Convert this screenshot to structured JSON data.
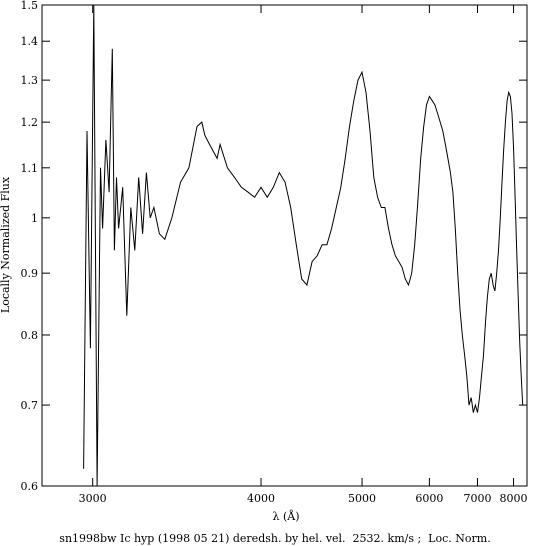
{
  "chart_data": {
    "type": "line",
    "xlabel": "λ (Å)",
    "ylabel": "Locally Normalized Flux",
    "caption": "sn1998bw Ic hyp (1998 05 21) deredsh. by hel. vel.  2532. km/s ;  Loc. Norm.",
    "x_scale": "reciprocal",
    "y_scale": "log",
    "xlim": [
      2790,
      8450
    ],
    "ylim": [
      0.6,
      1.5
    ],
    "x_ticks": [
      3000,
      4000,
      5000,
      6000,
      7000,
      8000
    ],
    "y_ticks": [
      0.6,
      0.7,
      0.8,
      0.9,
      1,
      1.1,
      1.2,
      1.3,
      1.4,
      1.5
    ],
    "grid": false,
    "series": [
      {
        "name": "",
        "x": [
          2960,
          2975,
          2990,
          3005,
          3020,
          3035,
          3045,
          3060,
          3075,
          3090,
          3100,
          3110,
          3120,
          3140,
          3160,
          3180,
          3200,
          3220,
          3240,
          3260,
          3280,
          3300,
          3330,
          3360,
          3400,
          3450,
          3500,
          3550,
          3580,
          3600,
          3630,
          3680,
          3700,
          3750,
          3800,
          3850,
          3900,
          3950,
          4000,
          4050,
          4100,
          4150,
          4200,
          4250,
          4300,
          4350,
          4400,
          4450,
          4500,
          4550,
          4600,
          4650,
          4700,
          4750,
          4800,
          4850,
          4900,
          4950,
          5000,
          5050,
          5100,
          5150,
          5200,
          5250,
          5300,
          5350,
          5400,
          5450,
          5500,
          5550,
          5600,
          5650,
          5700,
          5750,
          5800,
          5850,
          5900,
          5950,
          6000,
          6050,
          6100,
          6150,
          6200,
          6250,
          6300,
          6350,
          6400,
          6450,
          6500,
          6550,
          6600,
          6650,
          6700,
          6750,
          6800,
          6850,
          6900,
          6950,
          7000,
          7050,
          7100,
          7150,
          7200,
          7250,
          7300,
          7350,
          7400,
          7450,
          7500,
          7550,
          7600,
          7650,
          7700,
          7750,
          7800,
          7850,
          7900,
          7950,
          8000,
          8050,
          8100,
          8150,
          8200,
          8250,
          8300
        ],
        "y": [
          0.62,
          1.18,
          0.78,
          1.5,
          0.6,
          1.1,
          0.98,
          1.16,
          1.05,
          1.38,
          0.94,
          1.08,
          0.98,
          1.06,
          0.83,
          1.02,
          0.94,
          1.08,
          0.97,
          1.09,
          1.0,
          1.02,
          0.97,
          0.96,
          1.0,
          1.07,
          1.1,
          1.19,
          1.2,
          1.17,
          1.15,
          1.12,
          1.15,
          1.1,
          1.08,
          1.06,
          1.05,
          1.04,
          1.06,
          1.04,
          1.06,
          1.09,
          1.07,
          1.02,
          0.95,
          0.89,
          0.88,
          0.92,
          0.93,
          0.95,
          0.95,
          0.98,
          1.02,
          1.06,
          1.12,
          1.19,
          1.25,
          1.3,
          1.32,
          1.27,
          1.18,
          1.08,
          1.04,
          1.02,
          1.02,
          0.98,
          0.95,
          0.93,
          0.92,
          0.91,
          0.89,
          0.88,
          0.9,
          0.95,
          1.03,
          1.12,
          1.19,
          1.24,
          1.26,
          1.25,
          1.24,
          1.22,
          1.2,
          1.18,
          1.15,
          1.12,
          1.09,
          1.05,
          0.98,
          0.9,
          0.84,
          0.8,
          0.77,
          0.74,
          0.7,
          0.71,
          0.69,
          0.7,
          0.69,
          0.71,
          0.74,
          0.77,
          0.82,
          0.86,
          0.89,
          0.9,
          0.88,
          0.87,
          0.9,
          0.94,
          1.0,
          1.07,
          1.14,
          1.2,
          1.25,
          1.27,
          1.26,
          1.22,
          1.14,
          1.04,
          0.94,
          0.86,
          0.79,
          0.74,
          0.7
        ]
      }
    ]
  }
}
